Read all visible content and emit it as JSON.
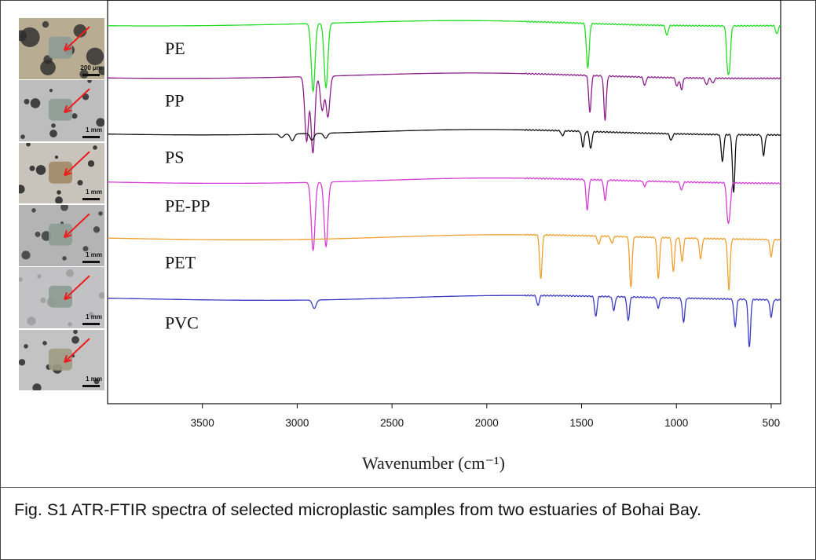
{
  "photos": [
    {
      "scale": "200 μm",
      "bg": "#b8ad93",
      "blobs": "#2a2a2a"
    },
    {
      "scale": "1 mm",
      "bg": "#bdbdbd",
      "blobs": "#222222"
    },
    {
      "scale": "1 mm",
      "bg": "#c8c4bc",
      "blobs": "#1a1a1a"
    },
    {
      "scale": "1 mm",
      "bg": "#b4b4b4",
      "blobs": "#333333"
    },
    {
      "scale": "1 mm",
      "bg": "#c2c2c4",
      "blobs": "#9a9a9a"
    },
    {
      "scale": "1 mm",
      "bg": "#c3c3c3",
      "blobs": "#222222"
    }
  ],
  "chart_data": {
    "type": "line",
    "title": "",
    "xlabel": "Wavenumber (cm⁻¹)",
    "ylabel": "",
    "xlim": [
      4000,
      450
    ],
    "x_reversed": true,
    "x_ticks": [
      3500,
      3000,
      2500,
      2000,
      1500,
      1000,
      500
    ],
    "grid": false,
    "legend": "none",
    "series": [
      {
        "name": "PE",
        "color": "#22dd22",
        "baseline": 0.06,
        "bands": [
          [
            2916,
            0.4
          ],
          [
            2848,
            0.38
          ],
          [
            1470,
            0.18
          ],
          [
            1463,
            0.12
          ],
          [
            730,
            0.22
          ],
          [
            719,
            0.2
          ],
          [
            1050,
            0.06
          ],
          [
            470,
            0.05
          ]
        ]
      },
      {
        "name": "PP",
        "color": "#8b1e8b",
        "baseline": 0.19,
        "bands": [
          [
            2950,
            0.38
          ],
          [
            2917,
            0.45
          ],
          [
            2868,
            0.2
          ],
          [
            2838,
            0.24
          ],
          [
            1456,
            0.22
          ],
          [
            1376,
            0.26
          ],
          [
            1167,
            0.05
          ],
          [
            997,
            0.05
          ],
          [
            973,
            0.07
          ],
          [
            841,
            0.04
          ],
          [
            808,
            0.03
          ]
        ]
      },
      {
        "name": "PS",
        "color": "#111111",
        "baseline": 0.33,
        "bands": [
          [
            3082,
            0.02
          ],
          [
            3026,
            0.04
          ],
          [
            2922,
            0.04
          ],
          [
            2850,
            0.03
          ],
          [
            1601,
            0.03
          ],
          [
            1493,
            0.09
          ],
          [
            1452,
            0.1
          ],
          [
            1028,
            0.04
          ],
          [
            757,
            0.16
          ],
          [
            698,
            0.34
          ],
          [
            540,
            0.12
          ]
        ]
      },
      {
        "name": "PE-PP",
        "color": "#d63cd6",
        "baseline": 0.45,
        "bands": [
          [
            2916,
            0.4
          ],
          [
            2848,
            0.38
          ],
          [
            1470,
            0.18
          ],
          [
            1376,
            0.12
          ],
          [
            1167,
            0.03
          ],
          [
            973,
            0.05
          ],
          [
            730,
            0.18
          ],
          [
            719,
            0.16
          ]
        ]
      },
      {
        "name": "PET",
        "color": "#f0a030",
        "baseline": 0.59,
        "bands": [
          [
            1715,
            0.26
          ],
          [
            1410,
            0.05
          ],
          [
            1340,
            0.04
          ],
          [
            1240,
            0.3
          ],
          [
            1095,
            0.24
          ],
          [
            1016,
            0.2
          ],
          [
            970,
            0.14
          ],
          [
            872,
            0.12
          ],
          [
            723,
            0.3
          ],
          [
            500,
            0.1
          ]
        ]
      },
      {
        "name": "PVC",
        "color": "#3a3ac4",
        "baseline": 0.74,
        "bands": [
          [
            2910,
            0.05
          ],
          [
            1730,
            0.06
          ],
          [
            1425,
            0.12
          ],
          [
            1330,
            0.08
          ],
          [
            1254,
            0.14
          ],
          [
            1096,
            0.06
          ],
          [
            962,
            0.14
          ],
          [
            690,
            0.16
          ],
          [
            615,
            0.28
          ],
          [
            500,
            0.1
          ]
        ]
      }
    ]
  },
  "caption": "Fig. S1 ATR-FTIR spectra of selected microplastic samples from two estuaries of Bohai Bay."
}
